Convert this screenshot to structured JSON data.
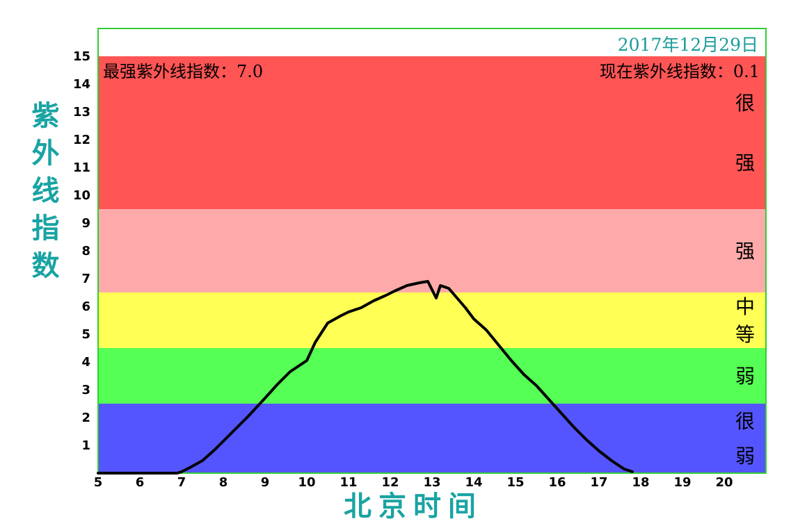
{
  "chart_data": {
    "type": "line",
    "date": "2017年12月29日",
    "max_text": "最强紫外线指数：7.0",
    "current_text": "现在紫外线指数：0.1",
    "xlabel": "北京时间",
    "ylabel": "紫外线指数",
    "xlim": [
      5,
      21
    ],
    "ylim": [
      0,
      16
    ],
    "x_ticks": [
      "5",
      "6",
      "7",
      "8",
      "9",
      "10",
      "11",
      "12",
      "13",
      "14",
      "15",
      "16",
      "17",
      "18",
      "19",
      "20"
    ],
    "y_ticks": [
      "1",
      "2",
      "3",
      "4",
      "5",
      "6",
      "7",
      "8",
      "9",
      "10",
      "11",
      "12",
      "13",
      "14",
      "15"
    ],
    "bands": [
      {
        "name": "很弱",
        "from": 0,
        "to": 2.5,
        "color": "#5555ff"
      },
      {
        "name": "弱",
        "from": 2.5,
        "to": 4.5,
        "color": "#55ff55"
      },
      {
        "name": "中等",
        "from": 4.5,
        "to": 6.5,
        "color": "#ffff55"
      },
      {
        "name": "强",
        "from": 6.5,
        "to": 9.5,
        "color": "#ffaaaa"
      },
      {
        "name": "很强",
        "from": 9.5,
        "to": 15,
        "color": "#ff5555"
      }
    ],
    "series": [
      {
        "line_color": "#000000",
        "x": [
          5.0,
          6.0,
          6.5,
          6.9,
          7.0,
          7.2,
          7.5,
          7.8,
          8.0,
          8.3,
          8.6,
          9.0,
          9.3,
          9.6,
          9.9,
          10.0,
          10.2,
          10.5,
          10.8,
          11.0,
          11.3,
          11.6,
          11.9,
          12.1,
          12.4,
          12.7,
          12.9,
          13.1,
          13.2,
          13.4,
          13.6,
          13.8,
          14.0,
          14.3,
          14.6,
          14.9,
          15.2,
          15.5,
          15.8,
          16.1,
          16.4,
          16.7,
          17.0,
          17.3,
          17.6,
          17.8
        ],
        "y": [
          0.0,
          0.0,
          0.0,
          0.0,
          0.05,
          0.2,
          0.45,
          0.85,
          1.15,
          1.6,
          2.05,
          2.7,
          3.2,
          3.65,
          3.95,
          4.05,
          4.7,
          5.4,
          5.65,
          5.8,
          5.95,
          6.2,
          6.4,
          6.55,
          6.75,
          6.85,
          6.9,
          6.3,
          6.75,
          6.65,
          6.3,
          5.95,
          5.55,
          5.15,
          4.6,
          4.05,
          3.55,
          3.15,
          2.65,
          2.15,
          1.65,
          1.2,
          0.8,
          0.45,
          0.15,
          0.05
        ]
      }
    ]
  }
}
